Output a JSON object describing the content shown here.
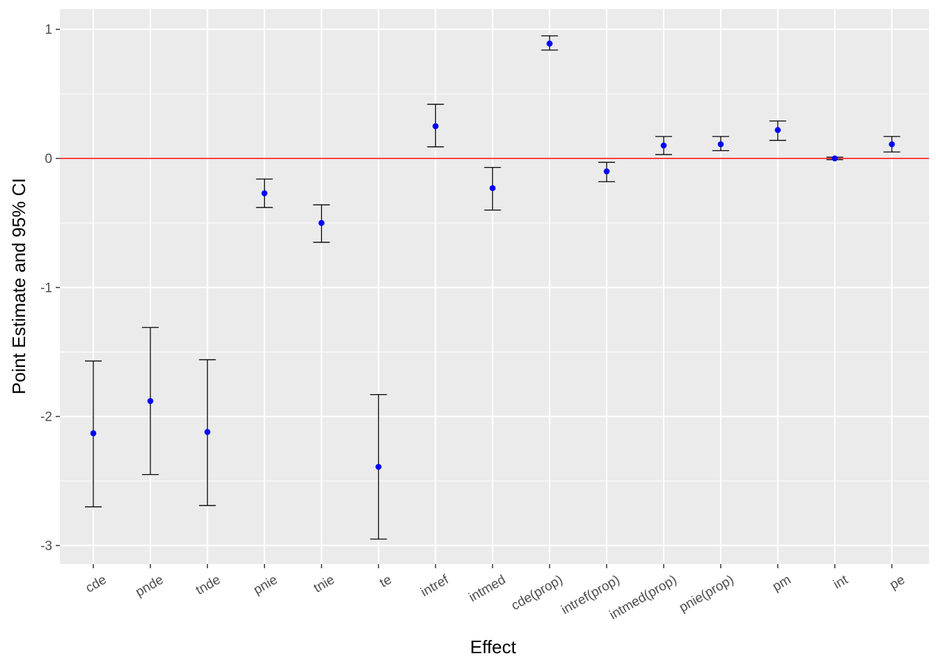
{
  "chart_data": {
    "type": "scatter",
    "xlabel": "Effect",
    "ylabel": "Point Estimate and 95% CI",
    "ylim": [
      -3.15,
      1.15
    ],
    "yticks": [
      1,
      0,
      -1,
      -2,
      -3
    ],
    "ytick_labels": [
      "1",
      "0",
      "-1",
      "-2",
      "-3"
    ],
    "reference_line": {
      "y": 0,
      "color": "#ff0000"
    },
    "grid": true,
    "panel_background": "#ebebeb",
    "point_color": "#0000ff",
    "errorbar_color": "#000000",
    "categories": [
      "cde",
      "pnde",
      "tnde",
      "pnie",
      "tnie",
      "te",
      "intref",
      "intmed",
      "cde(prop)",
      "intref(prop)",
      "intmed(prop)",
      "pnie(prop)",
      "pm",
      "int",
      "pe"
    ],
    "estimates": [
      -2.13,
      -1.88,
      -2.12,
      -0.27,
      -0.5,
      -2.39,
      0.25,
      -0.23,
      0.89,
      -0.1,
      0.1,
      0.11,
      0.22,
      0.0,
      0.11
    ],
    "lower": [
      -2.7,
      -2.45,
      -2.69,
      -0.38,
      -0.65,
      -2.95,
      0.09,
      -0.4,
      0.84,
      -0.18,
      0.03,
      0.06,
      0.14,
      -0.01,
      0.05
    ],
    "upper": [
      -1.57,
      -1.31,
      -1.56,
      -0.16,
      -0.36,
      -1.83,
      0.42,
      -0.07,
      0.95,
      -0.03,
      0.17,
      0.17,
      0.29,
      0.01,
      0.17
    ]
  }
}
